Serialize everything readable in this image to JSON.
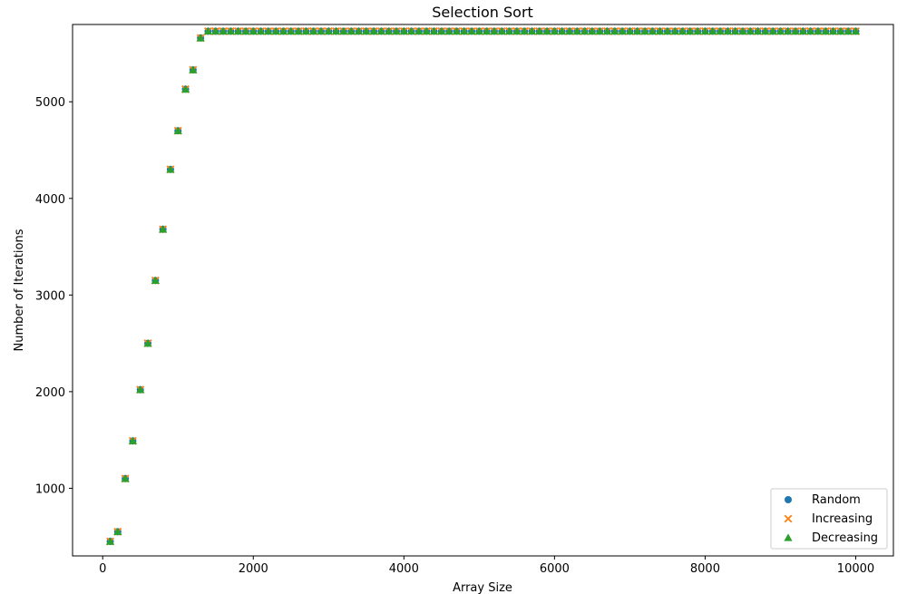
{
  "chart_data": {
    "type": "scatter",
    "title": "Selection Sort",
    "xlabel": "Array Size",
    "ylabel": "Number of Iterations",
    "xlim": [
      -400,
      10500
    ],
    "ylim": [
      300,
      5800
    ],
    "xticks": [
      0,
      2000,
      4000,
      6000,
      8000,
      10000
    ],
    "yticks": [
      1000,
      2000,
      3000,
      4000,
      5000
    ],
    "grid": false,
    "legend_position": "bottom-right",
    "x": {
      "start": 100,
      "step": 100,
      "count": 100
    },
    "y_initial": [
      450,
      550,
      1100,
      1490,
      2020,
      2500,
      3150,
      3680,
      4300,
      4700,
      5130,
      5330,
      5660
    ],
    "y_plateau": 5730,
    "series": [
      {
        "name": "Random",
        "marker": "circle",
        "color": "#1f77b4"
      },
      {
        "name": "Increasing",
        "marker": "x",
        "color": "#ff7f0e"
      },
      {
        "name": "Decreasing",
        "marker": "triangle",
        "color": "#2ca02c"
      }
    ]
  }
}
